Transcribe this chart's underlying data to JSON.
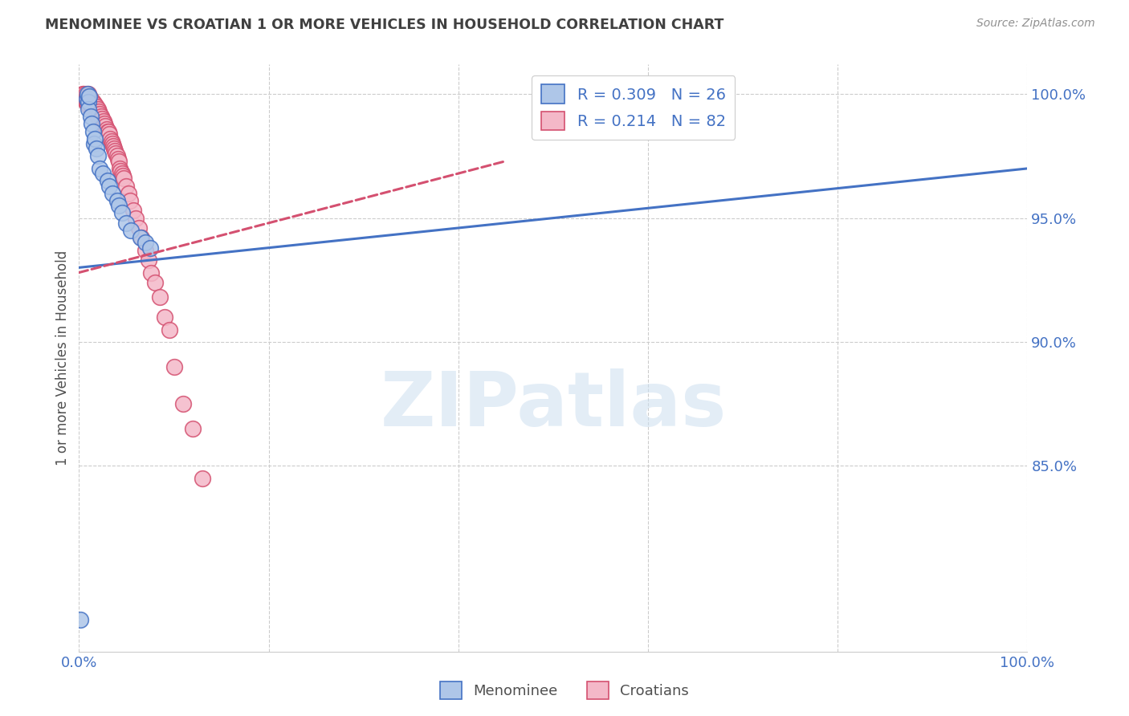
{
  "title": "MENOMINEE VS CROATIAN 1 OR MORE VEHICLES IN HOUSEHOLD CORRELATION CHART",
  "source": "Source: ZipAtlas.com",
  "xlabel": "",
  "ylabel": "1 or more Vehicles in Household",
  "watermark": "ZIPatlas",
  "xlim": [
    0.0,
    1.0
  ],
  "ylim": [
    0.775,
    1.012
  ],
  "xtick_labels": [
    "0.0%",
    "100.0%"
  ],
  "ytick_labels": [
    "85.0%",
    "90.0%",
    "95.0%",
    "100.0%"
  ],
  "ytick_values": [
    0.85,
    0.9,
    0.95,
    1.0
  ],
  "legend_blue_R": "R = 0.309",
  "legend_blue_N": "N = 26",
  "legend_pink_R": "R = 0.214",
  "legend_pink_N": "N = 82",
  "blue_color": "#aec6e8",
  "blue_line_color": "#4472c4",
  "pink_color": "#f4b8c8",
  "pink_line_color": "#d45070",
  "title_color": "#404040",
  "source_color": "#909090",
  "axis_label_color": "#505050",
  "tick_color": "#4472c4",
  "grid_color": "#cccccc",
  "background_color": "#ffffff",
  "menominee_x": [
    0.001,
    0.008,
    0.009,
    0.01,
    0.01,
    0.011,
    0.012,
    0.013,
    0.015,
    0.016,
    0.017,
    0.018,
    0.02,
    0.022,
    0.025,
    0.03,
    0.032,
    0.035,
    0.04,
    0.042,
    0.045,
    0.05,
    0.055,
    0.065,
    0.07,
    0.075
  ],
  "menominee_y": [
    0.788,
    0.998,
    1.0,
    0.997,
    0.994,
    0.999,
    0.991,
    0.988,
    0.985,
    0.98,
    0.982,
    0.978,
    0.975,
    0.97,
    0.968,
    0.965,
    0.963,
    0.96,
    0.957,
    0.955,
    0.952,
    0.948,
    0.945,
    0.942,
    0.94,
    0.938
  ],
  "croatian_x": [
    0.004,
    0.005,
    0.005,
    0.006,
    0.007,
    0.007,
    0.008,
    0.008,
    0.009,
    0.009,
    0.01,
    0.01,
    0.01,
    0.011,
    0.011,
    0.011,
    0.012,
    0.012,
    0.013,
    0.013,
    0.014,
    0.014,
    0.015,
    0.015,
    0.015,
    0.016,
    0.016,
    0.017,
    0.017,
    0.018,
    0.018,
    0.019,
    0.019,
    0.02,
    0.02,
    0.021,
    0.021,
    0.022,
    0.022,
    0.023,
    0.024,
    0.025,
    0.026,
    0.027,
    0.028,
    0.029,
    0.03,
    0.031,
    0.032,
    0.033,
    0.034,
    0.035,
    0.036,
    0.037,
    0.038,
    0.039,
    0.04,
    0.041,
    0.042,
    0.043,
    0.044,
    0.045,
    0.046,
    0.047,
    0.05,
    0.052,
    0.054,
    0.057,
    0.06,
    0.063,
    0.066,
    0.07,
    0.073,
    0.076,
    0.08,
    0.085,
    0.09,
    0.095,
    0.1,
    0.11,
    0.12,
    0.13
  ],
  "croatian_y": [
    1.0,
    1.0,
    0.998,
    0.998,
    1.0,
    0.997,
    0.999,
    0.997,
    0.998,
    0.996,
    1.0,
    0.999,
    0.997,
    0.998,
    0.997,
    0.995,
    0.998,
    0.996,
    0.997,
    0.995,
    0.997,
    0.994,
    0.997,
    0.996,
    0.994,
    0.995,
    0.993,
    0.996,
    0.993,
    0.995,
    0.992,
    0.993,
    0.991,
    0.994,
    0.992,
    0.993,
    0.99,
    0.992,
    0.99,
    0.991,
    0.99,
    0.988,
    0.989,
    0.988,
    0.987,
    0.986,
    0.985,
    0.985,
    0.984,
    0.982,
    0.981,
    0.98,
    0.979,
    0.978,
    0.977,
    0.976,
    0.975,
    0.974,
    0.973,
    0.97,
    0.969,
    0.968,
    0.967,
    0.966,
    0.963,
    0.96,
    0.957,
    0.953,
    0.95,
    0.946,
    0.942,
    0.937,
    0.933,
    0.928,
    0.924,
    0.918,
    0.91,
    0.905,
    0.89,
    0.875,
    0.865,
    0.845
  ]
}
